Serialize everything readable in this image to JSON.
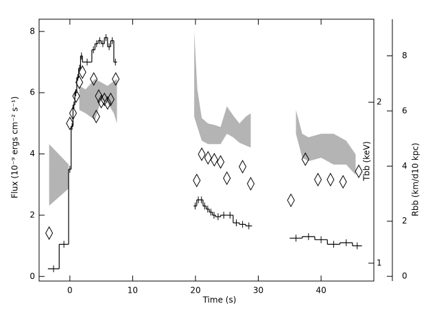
{
  "chart_data": {
    "type": "combo",
    "xlabel": "Time (s)",
    "ylabel": "Flux (10⁻⁹ ergs cm⁻² s⁻¹)",
    "y2label": "Tbb (keV)",
    "y3label": "Rbb (km/d10 kpc)",
    "xlim": [
      -4.9,
      48.4
    ],
    "xticks": [
      0,
      10,
      20,
      30,
      40
    ],
    "ylim": [
      -0.15,
      8.4
    ],
    "yticks": [
      0,
      2,
      4,
      6,
      8
    ],
    "y2lim": [
      0.926,
      2.86
    ],
    "y2ticks": [
      1,
      2
    ],
    "y2scale": "log",
    "y3lim": [
      -0.17,
      9.33
    ],
    "y3ticks": [
      0,
      2,
      4,
      6,
      8
    ],
    "series": [
      {
        "type": "step",
        "color": "#000000",
        "bins": [
          -3.5,
          -1.7,
          -0.2,
          0.2,
          0.5,
          0.8,
          1.1,
          1.4,
          1.7,
          2.0,
          3.5,
          4.0,
          4.5,
          5.0,
          5.5,
          6.0,
          6.5,
          7.0,
          7.5,
          19.7,
          20.2,
          20.7,
          21.2,
          21.7,
          22.2,
          22.7,
          23.2,
          24,
          25,
          26,
          27,
          28,
          29,
          35,
          37,
          39,
          41,
          43,
          45,
          46.5
        ],
        "values": [
          0.25,
          1.05,
          3.5,
          4.9,
          5.6,
          6.0,
          6.5,
          6.8,
          7.2,
          7.0,
          7.4,
          7.6,
          7.7,
          7.6,
          7.8,
          7.5,
          7.7,
          7.0,
          null,
          2.3,
          2.5,
          2.5,
          2.3,
          2.2,
          2.1,
          2.0,
          1.95,
          2.0,
          2.0,
          1.75,
          1.7,
          1.65,
          null,
          1.25,
          1.3,
          1.2,
          1.05,
          1.1,
          1.0
        ]
      },
      {
        "type": "band",
        "axis": "y2",
        "color": "#b4b4b4",
        "x": [
          -3.3,
          -0.2,
          null,
          1.5,
          2.5,
          4,
          5,
          6,
          7,
          7.5,
          null,
          19.8,
          20.3,
          21,
          22,
          23,
          24,
          25,
          26,
          27,
          28,
          28.8,
          null,
          36,
          37,
          38,
          40,
          42,
          44,
          45.5
        ],
        "upper": [
          1.67,
          1.53,
          null,
          2.146,
          2.114,
          2.211,
          2.178,
          2.146,
          2.191,
          2.211,
          null,
          2.717,
          2.114,
          1.868,
          1.825,
          1.814,
          1.798,
          1.965,
          1.89,
          1.825,
          1.879,
          1.907,
          null,
          1.935,
          1.746,
          1.72,
          1.746,
          1.746,
          1.695,
          1.598
        ],
        "lower": [
          1.281,
          1.379,
          null,
          1.935,
          1.907,
          1.852,
          2.023,
          1.993,
          1.907,
          1.825,
          null,
          1.879,
          1.798,
          1.695,
          1.67,
          1.67,
          1.67,
          1.746,
          1.72,
          1.68,
          1.66,
          1.646,
          null,
          1.746,
          1.575,
          1.552,
          1.575,
          1.529,
          1.529,
          1.463
        ]
      },
      {
        "type": "diamond",
        "axis": "y3",
        "color": "#000000",
        "x": [
          -3.3,
          0,
          0.5,
          1,
          1.5,
          2,
          3.8,
          4.2,
          4.6,
          5,
          5.5,
          6,
          6.5,
          7.3,
          20.2,
          21,
          22,
          23,
          24,
          25,
          27.5,
          28.8,
          35.2,
          37.5,
          39.5,
          41.5,
          43.5,
          46
        ],
        "values": [
          1.57,
          5.55,
          5.92,
          6.54,
          7.04,
          7.41,
          7.16,
          5.8,
          6.54,
          6.34,
          6.42,
          6.29,
          6.42,
          7.16,
          3.48,
          4.43,
          4.3,
          4.23,
          4.15,
          3.56,
          3.98,
          3.36,
          2.76,
          4.25,
          3.51,
          3.51,
          3.43,
          3.81
        ]
      }
    ]
  }
}
